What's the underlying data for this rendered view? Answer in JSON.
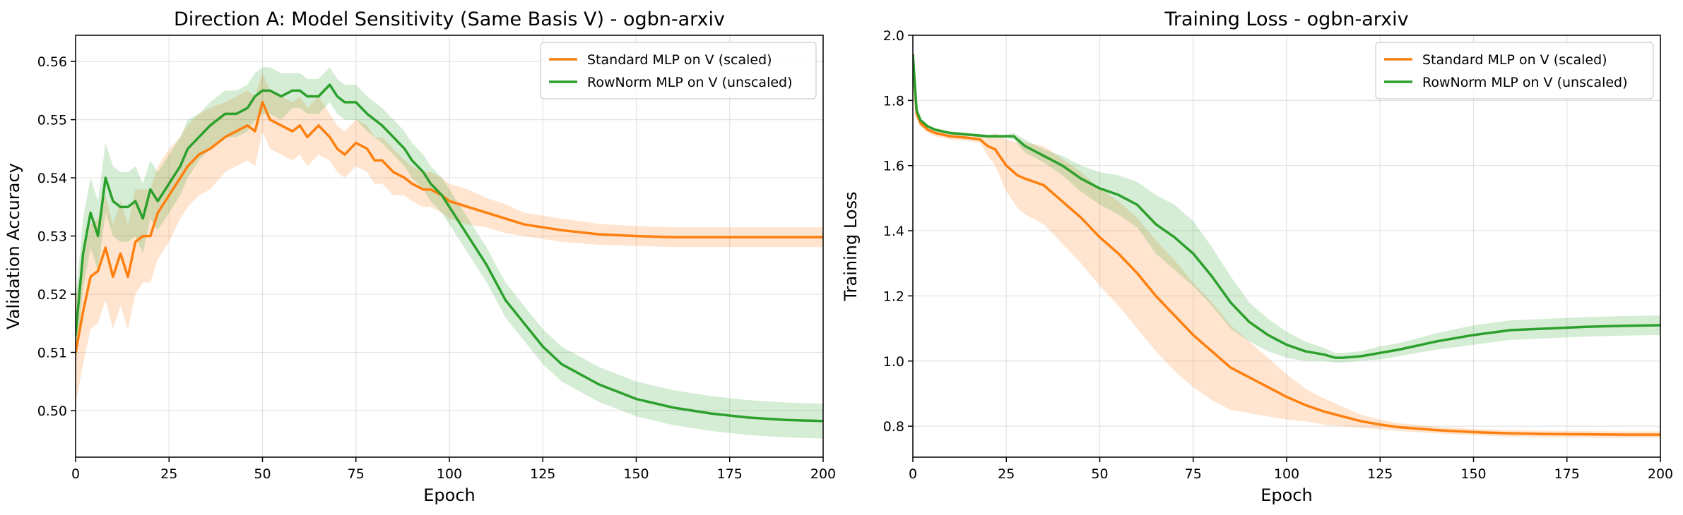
{
  "chart_data": [
    {
      "type": "line",
      "title": "Direction A: Model Sensitivity (Same Basis V) - ogbn-arxiv",
      "xlabel": "Epoch",
      "ylabel": "Validation Accuracy",
      "xlim": [
        0,
        200
      ],
      "ylim": [
        0.492,
        0.5645
      ],
      "xticks": [
        0,
        25,
        50,
        75,
        100,
        125,
        150,
        175,
        200
      ],
      "yticks": [
        0.5,
        0.51,
        0.52,
        0.53,
        0.54,
        0.55,
        0.56
      ],
      "ytick_decimals": 2,
      "grid": true,
      "legend_position": "top-right",
      "series": [
        {
          "name": "Standard MLP on V (scaled)",
          "color": "#ff7f0e",
          "shaded_band": true,
          "x": [
            0,
            2,
            4,
            6,
            8,
            10,
            12,
            14,
            16,
            18,
            20,
            22,
            25,
            28,
            30,
            33,
            36,
            40,
            43,
            46,
            48,
            50,
            52,
            55,
            58,
            60,
            62,
            65,
            68,
            70,
            72,
            75,
            78,
            80,
            82,
            85,
            88,
            90,
            93,
            95,
            98,
            100,
            105,
            110,
            115,
            120,
            125,
            130,
            140,
            150,
            160,
            170,
            180,
            190,
            200
          ],
          "y": [
            0.51,
            0.517,
            0.523,
            0.524,
            0.528,
            0.523,
            0.527,
            0.523,
            0.529,
            0.53,
            0.53,
            0.534,
            0.537,
            0.54,
            0.542,
            0.544,
            0.545,
            0.547,
            0.548,
            0.549,
            0.548,
            0.553,
            0.55,
            0.549,
            0.548,
            0.549,
            0.547,
            0.549,
            0.547,
            0.545,
            0.544,
            0.546,
            0.545,
            0.543,
            0.543,
            0.541,
            0.54,
            0.539,
            0.538,
            0.538,
            0.537,
            0.536,
            0.535,
            0.534,
            0.533,
            0.532,
            0.5315,
            0.531,
            0.5303,
            0.53,
            0.5298,
            0.5298,
            0.5298,
            0.5298,
            0.5298
          ],
          "band_halfwidth": [
            0.009,
            0.009,
            0.009,
            0.009,
            0.009,
            0.009,
            0.009,
            0.009,
            0.009,
            0.008,
            0.008,
            0.008,
            0.008,
            0.007,
            0.007,
            0.007,
            0.007,
            0.006,
            0.006,
            0.006,
            0.006,
            0.005,
            0.005,
            0.005,
            0.005,
            0.005,
            0.005,
            0.005,
            0.004,
            0.004,
            0.004,
            0.004,
            0.004,
            0.004,
            0.004,
            0.004,
            0.003,
            0.003,
            0.003,
            0.003,
            0.003,
            0.003,
            0.003,
            0.0025,
            0.0025,
            0.002,
            0.002,
            0.002,
            0.0018,
            0.0017,
            0.0017,
            0.0017,
            0.0017,
            0.0017,
            0.0017
          ]
        },
        {
          "name": "RowNorm MLP on V (unscaled)",
          "color": "#2ca02c",
          "shaded_band": true,
          "x": [
            0,
            2,
            4,
            6,
            8,
            10,
            12,
            14,
            16,
            18,
            20,
            22,
            25,
            28,
            30,
            33,
            36,
            40,
            43,
            46,
            48,
            50,
            52,
            55,
            58,
            60,
            62,
            65,
            68,
            70,
            72,
            75,
            78,
            80,
            82,
            85,
            88,
            90,
            93,
            95,
            98,
            100,
            105,
            110,
            115,
            120,
            125,
            130,
            140,
            150,
            160,
            170,
            180,
            190,
            200
          ],
          "y": [
            0.513,
            0.527,
            0.534,
            0.53,
            0.54,
            0.536,
            0.535,
            0.535,
            0.536,
            0.533,
            0.538,
            0.536,
            0.539,
            0.542,
            0.545,
            0.547,
            0.549,
            0.551,
            0.551,
            0.552,
            0.554,
            0.555,
            0.555,
            0.554,
            0.555,
            0.555,
            0.554,
            0.554,
            0.556,
            0.554,
            0.553,
            0.553,
            0.551,
            0.55,
            0.549,
            0.547,
            0.545,
            0.543,
            0.541,
            0.539,
            0.537,
            0.535,
            0.53,
            0.525,
            0.519,
            0.515,
            0.511,
            0.508,
            0.5045,
            0.502,
            0.5005,
            0.4995,
            0.4988,
            0.4984,
            0.4982
          ],
          "band_halfwidth": [
            0.006,
            0.006,
            0.006,
            0.006,
            0.006,
            0.006,
            0.006,
            0.006,
            0.006,
            0.006,
            0.005,
            0.005,
            0.005,
            0.005,
            0.005,
            0.004,
            0.004,
            0.004,
            0.004,
            0.004,
            0.004,
            0.004,
            0.004,
            0.004,
            0.003,
            0.003,
            0.003,
            0.003,
            0.003,
            0.003,
            0.003,
            0.003,
            0.003,
            0.003,
            0.003,
            0.003,
            0.003,
            0.003,
            0.003,
            0.003,
            0.003,
            0.003,
            0.003,
            0.003,
            0.003,
            0.003,
            0.003,
            0.003,
            0.003,
            0.003,
            0.003,
            0.003,
            0.003,
            0.003,
            0.003
          ]
        }
      ]
    },
    {
      "type": "line",
      "title": "Training Loss - ogbn-arxiv",
      "xlabel": "Epoch",
      "ylabel": "Training Loss",
      "xlim": [
        0,
        200
      ],
      "ylim": [
        0.705,
        2.0
      ],
      "xticks": [
        0,
        25,
        50,
        75,
        100,
        125,
        150,
        175,
        200
      ],
      "yticks": [
        0.8,
        1.0,
        1.2,
        1.4,
        1.6,
        1.8,
        2.0
      ],
      "ytick_decimals": 1,
      "grid": true,
      "legend_position": "top-right",
      "series": [
        {
          "name": "Standard MLP on V (scaled)",
          "color": "#ff7f0e",
          "shaded_band": true,
          "x": [
            0,
            1,
            2,
            4,
            6,
            10,
            15,
            18,
            20,
            22,
            25,
            28,
            30,
            35,
            40,
            45,
            50,
            55,
            60,
            65,
            70,
            75,
            80,
            85,
            90,
            95,
            100,
            105,
            110,
            115,
            120,
            125,
            130,
            140,
            150,
            160,
            170,
            180,
            190,
            200
          ],
          "y": [
            1.94,
            1.76,
            1.73,
            1.71,
            1.7,
            1.69,
            1.685,
            1.68,
            1.66,
            1.65,
            1.6,
            1.57,
            1.56,
            1.54,
            1.49,
            1.44,
            1.38,
            1.33,
            1.27,
            1.2,
            1.14,
            1.08,
            1.03,
            0.98,
            0.95,
            0.92,
            0.89,
            0.865,
            0.845,
            0.83,
            0.815,
            0.805,
            0.797,
            0.788,
            0.782,
            0.778,
            0.776,
            0.775,
            0.774,
            0.774
          ],
          "band_halfwidth": [
            0.0,
            0.01,
            0.01,
            0.01,
            0.01,
            0.01,
            0.01,
            0.01,
            0.03,
            0.05,
            0.08,
            0.1,
            0.11,
            0.12,
            0.13,
            0.14,
            0.15,
            0.16,
            0.17,
            0.17,
            0.17,
            0.16,
            0.15,
            0.13,
            0.11,
            0.09,
            0.07,
            0.05,
            0.04,
            0.03,
            0.02,
            0.015,
            0.012,
            0.01,
            0.01,
            0.01,
            0.01,
            0.01,
            0.01,
            0.01
          ]
        },
        {
          "name": "RowNorm MLP on V (unscaled)",
          "color": "#2ca02c",
          "shaded_band": true,
          "x": [
            0,
            1,
            2,
            4,
            6,
            10,
            15,
            20,
            25,
            27,
            30,
            35,
            40,
            45,
            50,
            55,
            60,
            65,
            70,
            75,
            80,
            85,
            90,
            95,
            100,
            105,
            110,
            113,
            115,
            120,
            125,
            130,
            140,
            150,
            160,
            170,
            180,
            190,
            200
          ],
          "y": [
            1.94,
            1.77,
            1.74,
            1.72,
            1.71,
            1.7,
            1.695,
            1.69,
            1.69,
            1.69,
            1.66,
            1.63,
            1.6,
            1.56,
            1.53,
            1.51,
            1.48,
            1.42,
            1.38,
            1.33,
            1.26,
            1.18,
            1.12,
            1.08,
            1.05,
            1.03,
            1.02,
            1.01,
            1.01,
            1.015,
            1.025,
            1.035,
            1.06,
            1.08,
            1.095,
            1.1,
            1.105,
            1.108,
            1.11
          ],
          "band_halfwidth": [
            0.0,
            0.005,
            0.005,
            0.005,
            0.005,
            0.005,
            0.005,
            0.005,
            0.005,
            0.01,
            0.02,
            0.02,
            0.03,
            0.04,
            0.05,
            0.06,
            0.07,
            0.09,
            0.1,
            0.1,
            0.09,
            0.08,
            0.06,
            0.05,
            0.04,
            0.03,
            0.02,
            0.015,
            0.015,
            0.015,
            0.02,
            0.02,
            0.025,
            0.03,
            0.03,
            0.03,
            0.03,
            0.03,
            0.03
          ]
        }
      ]
    }
  ]
}
